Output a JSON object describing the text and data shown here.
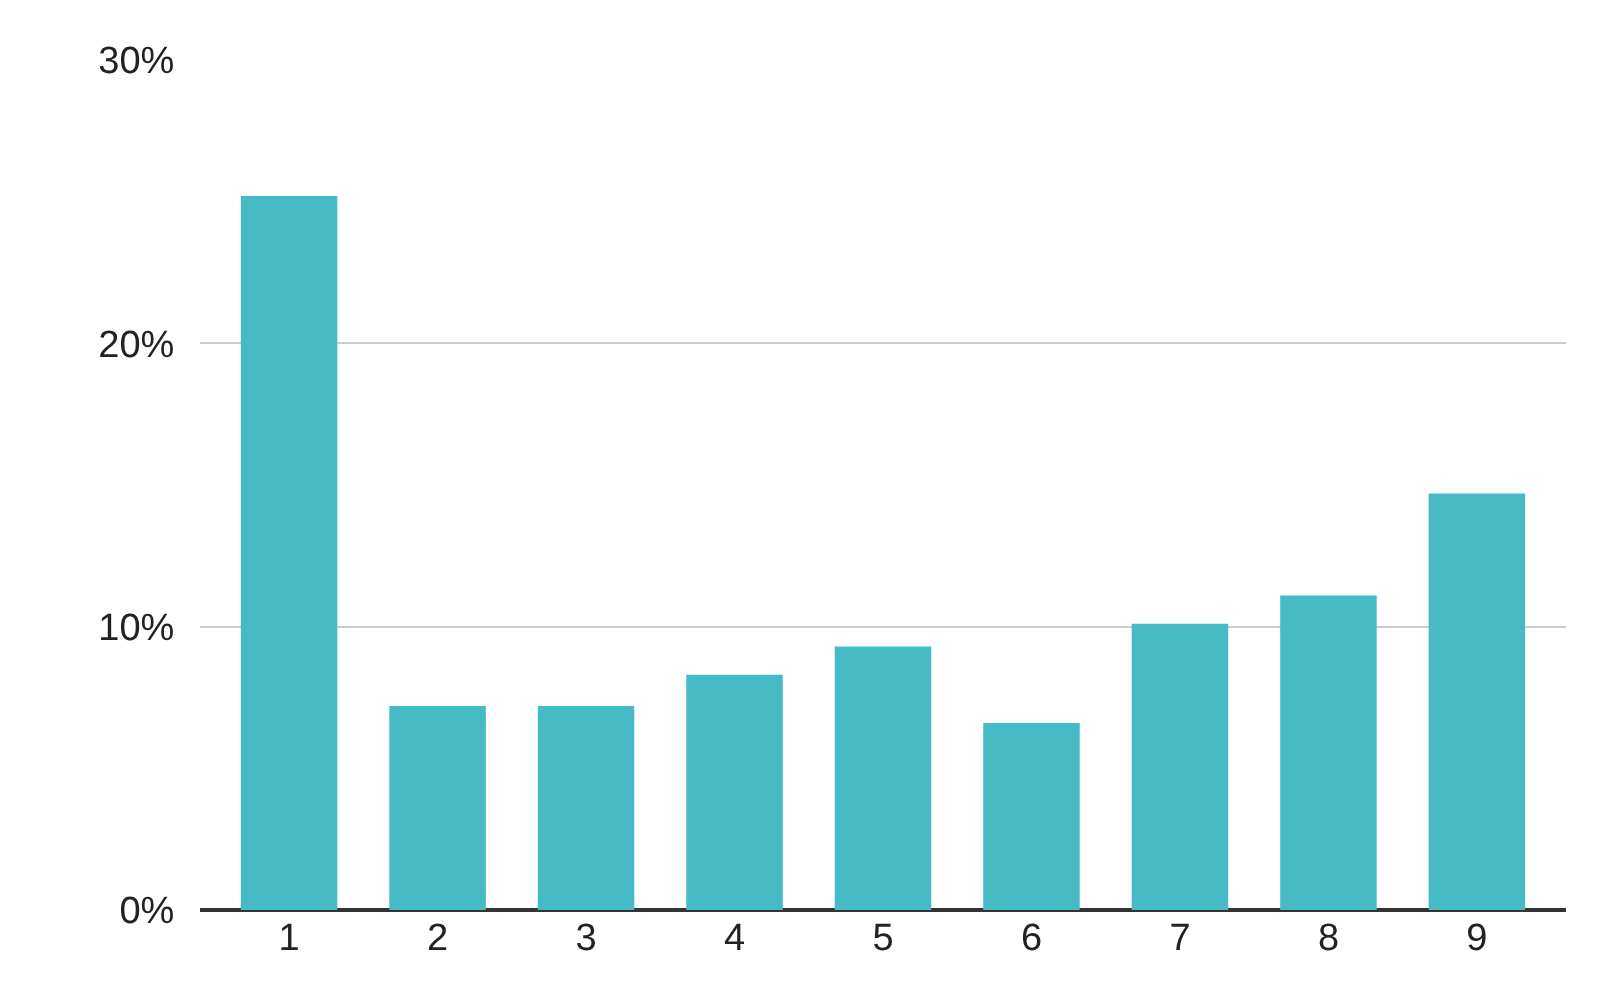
{
  "chart_data": {
    "type": "bar",
    "categories": [
      "1",
      "2",
      "3",
      "4",
      "5",
      "6",
      "7",
      "8",
      "9"
    ],
    "values": [
      25.2,
      7.2,
      7.2,
      8.3,
      9.3,
      6.6,
      10.1,
      11.1,
      14.7
    ],
    "color": "#47bbc5",
    "ylim": [
      0,
      30
    ],
    "yticks": [
      {
        "value": 0,
        "label": "0%"
      },
      {
        "value": 10,
        "label": "10%"
      },
      {
        "value": 20,
        "label": "20%"
      },
      {
        "value": 30,
        "label": "30%"
      }
    ],
    "grid": "y",
    "legend": false
  }
}
